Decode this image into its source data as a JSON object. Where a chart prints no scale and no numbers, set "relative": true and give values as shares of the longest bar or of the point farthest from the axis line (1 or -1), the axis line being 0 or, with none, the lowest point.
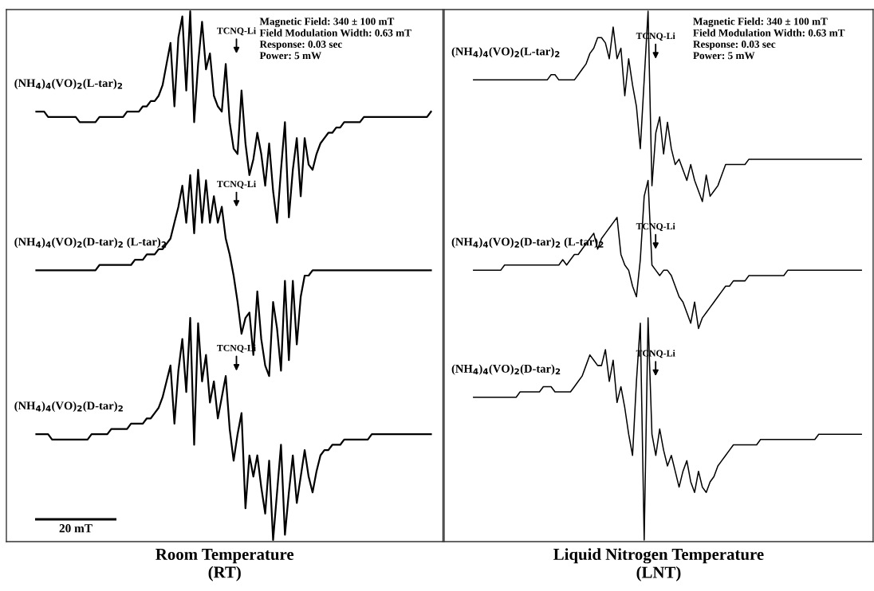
{
  "chart_data": [
    {
      "type": "line",
      "relative": true,
      "tick_labels": false,
      "line_style": "solid",
      "xlabel": "Room Temperature\n(RT)",
      "categories": [
        null,
        null,
        null,
        null,
        null,
        null,
        null,
        null,
        null,
        null,
        null,
        null,
        null,
        null,
        null,
        null,
        null,
        null,
        null,
        null,
        null,
        null,
        null,
        null,
        null,
        null,
        null,
        null,
        null,
        null,
        null,
        null,
        null,
        null,
        null,
        null,
        null,
        null,
        null,
        null,
        null,
        null,
        null,
        null,
        null,
        null,
        null,
        null,
        null,
        null,
        null,
        null,
        null,
        null,
        null,
        null,
        null,
        null,
        null,
        null,
        null,
        null,
        null,
        null,
        null,
        null,
        null,
        null,
        null,
        null,
        null,
        null,
        null,
        null,
        null,
        null,
        null,
        null,
        null,
        null,
        null,
        null,
        null,
        null,
        null,
        null,
        null,
        null,
        null,
        null,
        null,
        null,
        null,
        null,
        null,
        null,
        null,
        null,
        null,
        null,
        null
      ],
      "series": [
        {
          "name": "(NH$_{4}$)$_{4}$(VO)$_{2}$(L-tar)$_{2}$",
          "color": "#000000",
          "values": [
            0.81,
            0.81,
            0.81,
            0.8,
            0.8,
            0.8,
            0.8,
            0.8,
            0.8,
            0.8,
            0.8,
            0.79,
            0.79,
            0.79,
            0.79,
            0.79,
            0.8,
            0.8,
            0.8,
            0.8,
            0.8,
            0.8,
            0.8,
            0.81,
            0.81,
            0.81,
            0.81,
            0.82,
            0.82,
            0.83,
            0.83,
            0.84,
            0.86,
            0.9,
            0.94,
            0.82,
            0.95,
            0.99,
            0.85,
            1.0,
            0.79,
            0.9,
            0.98,
            0.89,
            0.92,
            0.84,
            0.82,
            0.81,
            0.9,
            0.79,
            0.74,
            0.73,
            0.85,
            0.75,
            0.69,
            0.72,
            0.77,
            0.73,
            0.67,
            0.75,
            0.66,
            0.6,
            0.7,
            0.79,
            0.61,
            0.7,
            0.76,
            0.65,
            0.76,
            0.71,
            0.7,
            0.73,
            0.75,
            0.76,
            0.77,
            0.77,
            0.78,
            0.78,
            0.79,
            0.79,
            0.79,
            0.79,
            0.79,
            0.8,
            0.8,
            0.8,
            0.8,
            0.8,
            0.8,
            0.8,
            0.8,
            0.8,
            0.8,
            0.8,
            0.8,
            0.8,
            0.8,
            0.8,
            0.8,
            0.8,
            0.81
          ]
        },
        {
          "name": "(NH$_{4}$)$_{4}$(VO)$_{2}$(D-tar)$_{2}$ (L-tar)$_{2}$",
          "color": "#000000",
          "values": [
            0.51,
            0.51,
            0.51,
            0.51,
            0.51,
            0.51,
            0.51,
            0.51,
            0.51,
            0.51,
            0.51,
            0.51,
            0.51,
            0.51,
            0.51,
            0.51,
            0.52,
            0.52,
            0.52,
            0.52,
            0.52,
            0.52,
            0.52,
            0.52,
            0.52,
            0.53,
            0.53,
            0.53,
            0.54,
            0.54,
            0.54,
            0.55,
            0.55,
            0.56,
            0.57,
            0.6,
            0.63,
            0.67,
            0.6,
            0.69,
            0.58,
            0.7,
            0.6,
            0.68,
            0.6,
            0.65,
            0.6,
            0.63,
            0.57,
            0.54,
            0.5,
            0.45,
            0.39,
            0.42,
            0.43,
            0.35,
            0.47,
            0.38,
            0.33,
            0.31,
            0.45,
            0.4,
            0.32,
            0.49,
            0.34,
            0.49,
            0.37,
            0.46,
            0.5,
            0.5,
            0.51,
            0.51,
            0.51,
            0.51,
            0.51,
            0.51,
            0.51,
            0.51,
            0.51,
            0.51,
            0.51,
            0.51,
            0.51,
            0.51,
            0.51,
            0.51,
            0.51,
            0.51,
            0.51,
            0.51,
            0.51,
            0.51,
            0.51,
            0.51,
            0.51,
            0.51,
            0.51,
            0.51,
            0.51,
            0.51,
            0.51
          ]
        },
        {
          "name": "(NH$_{4}$)$_{4}$(VO)$_{2}$(D-tar)$_{2}$",
          "color": "#000000",
          "values": [
            0.2,
            0.2,
            0.2,
            0.2,
            0.19,
            0.19,
            0.19,
            0.19,
            0.19,
            0.19,
            0.19,
            0.19,
            0.19,
            0.19,
            0.2,
            0.2,
            0.2,
            0.2,
            0.2,
            0.21,
            0.21,
            0.21,
            0.21,
            0.21,
            0.22,
            0.22,
            0.22,
            0.22,
            0.23,
            0.23,
            0.24,
            0.25,
            0.27,
            0.3,
            0.33,
            0.22,
            0.32,
            0.38,
            0.28,
            0.42,
            0.18,
            0.41,
            0.3,
            0.35,
            0.26,
            0.3,
            0.23,
            0.27,
            0.31,
            0.21,
            0.15,
            0.2,
            0.24,
            0.06,
            0.16,
            0.12,
            0.16,
            0.1,
            0.05,
            0.15,
            0,
            0.09,
            0.18,
            0.01,
            0.09,
            0.16,
            0.07,
            0.12,
            0.17,
            0.12,
            0.09,
            0.13,
            0.16,
            0.17,
            0.17,
            0.18,
            0.18,
            0.18,
            0.19,
            0.19,
            0.19,
            0.19,
            0.19,
            0.19,
            0.19,
            0.2,
            0.2,
            0.2,
            0.2,
            0.2,
            0.2,
            0.2,
            0.2,
            0.2,
            0.2,
            0.2,
            0.2,
            0.2,
            0.2,
            0.2,
            0.2
          ]
        },
        {
          "color": "#000000",
          "values": [
            0.039,
            0.039,
            0.039,
            0.039,
            0.039,
            0.039,
            0.039,
            0.039,
            0.039,
            0.039,
            0.039,
            0.039,
            0.039,
            0.039,
            0.039,
            0.039,
            0.039,
            0.039,
            0.039,
            0.039,
            0.039,
            null,
            null,
            null,
            null,
            null,
            null,
            null,
            null,
            null,
            null,
            null,
            null,
            null,
            null,
            null,
            null,
            null,
            null,
            null,
            null,
            null,
            null,
            null,
            null,
            null,
            null,
            null,
            null,
            null,
            null,
            null,
            null,
            null,
            null,
            null,
            null,
            null,
            null,
            null,
            null,
            null,
            null,
            null,
            null,
            null,
            null,
            null,
            null,
            null,
            null,
            null,
            null,
            null,
            null,
            null,
            null,
            null,
            null,
            null,
            null,
            null,
            null,
            null,
            null,
            null,
            null,
            null,
            null,
            null,
            null,
            null,
            null,
            null,
            null,
            null,
            null,
            null,
            null,
            null,
            null
          ]
        }
      ],
      "annotations": [
        "TCNQ-Li",
        "TCNQ-Li",
        "TCNQ-Li",
        "Magnetic Field: 340 ± 100 mT\nField Modulation Width: 0.63 mT\nResponse: 0.03 sec\nPower: 5 mW",
        "20 mT"
      ]
    },
    {
      "type": "line",
      "relative": true,
      "tick_labels": false,
      "line_style": "solid",
      "xlabel": "Liquid Nitrogen Temperature\n(LNT)",
      "categories": [
        null,
        null,
        null,
        null,
        null,
        null,
        null,
        null,
        null,
        null,
        null,
        null,
        null,
        null,
        null,
        null,
        null,
        null,
        null,
        null,
        null,
        null,
        null,
        null,
        null,
        null,
        null,
        null,
        null,
        null,
        null,
        null,
        null,
        null,
        null,
        null,
        null,
        null,
        null,
        null,
        null,
        null,
        null,
        null,
        null,
        null,
        null,
        null,
        null,
        null,
        null,
        null,
        null,
        null,
        null,
        null,
        null,
        null,
        null,
        null,
        null,
        null,
        null,
        null,
        null,
        null,
        null,
        null,
        null,
        null,
        null,
        null,
        null,
        null,
        null,
        null,
        null,
        null,
        null,
        null,
        null,
        null,
        null,
        null,
        null,
        null,
        null,
        null,
        null,
        null,
        null,
        null,
        null,
        null,
        null,
        null,
        null,
        null,
        null,
        null,
        null
      ],
      "series": [
        {
          "name": "(NH$_{4}$)$_{4}$(VO)$_{2}$(L-tar)$_{2}$",
          "color": "#000000",
          "values": [
            0.87,
            0.87,
            0.87,
            0.87,
            0.87,
            0.87,
            0.87,
            0.87,
            0.87,
            0.87,
            0.87,
            0.87,
            0.87,
            0.87,
            0.87,
            0.87,
            0.87,
            0.87,
            0.87,
            0.87,
            0.88,
            0.88,
            0.87,
            0.87,
            0.87,
            0.87,
            0.87,
            0.88,
            0.89,
            0.9,
            0.92,
            0.93,
            0.95,
            0.95,
            0.94,
            0.91,
            0.97,
            0.91,
            0.93,
            0.84,
            0.91,
            0.86,
            0.82,
            0.74,
            0.87,
            1.0,
            0.67,
            0.77,
            0.8,
            0.73,
            0.79,
            0.74,
            0.71,
            0.72,
            0.7,
            0.68,
            0.71,
            0.68,
            0.66,
            0.64,
            0.69,
            0.65,
            0.66,
            0.67,
            0.69,
            0.71,
            0.71,
            0.71,
            0.71,
            0.71,
            0.71,
            0.72,
            0.72,
            0.72,
            0.72,
            0.72,
            0.72,
            0.72,
            0.72,
            0.72,
            0.72,
            0.72,
            0.72,
            0.72,
            0.72,
            0.72,
            0.72,
            0.72,
            0.72,
            0.72,
            0.72,
            0.72,
            0.72,
            0.72,
            0.72,
            0.72,
            0.72,
            0.72,
            0.72,
            0.72,
            0.72
          ]
        },
        {
          "name": "(NH$_{4}$)$_{4}$(VO)$_{2}$(D-tar)$_{2}$ (L-tar)$_{2}$",
          "color": "#000000",
          "values": [
            0.51,
            0.51,
            0.51,
            0.51,
            0.51,
            0.51,
            0.51,
            0.51,
            0.52,
            0.52,
            0.52,
            0.52,
            0.52,
            0.52,
            0.52,
            0.52,
            0.52,
            0.52,
            0.52,
            0.52,
            0.52,
            0.52,
            0.52,
            0.53,
            0.52,
            0.53,
            0.54,
            0.54,
            0.55,
            0.56,
            0.57,
            0.58,
            0.55,
            0.57,
            0.58,
            0.59,
            0.6,
            0.61,
            0.54,
            0.52,
            0.51,
            0.48,
            0.46,
            0.53,
            0.65,
            0.68,
            0.52,
            0.51,
            0.5,
            0.51,
            0.51,
            0.5,
            0.48,
            0.46,
            0.45,
            0.43,
            0.41,
            0.45,
            0.4,
            0.42,
            0.43,
            0.44,
            0.45,
            0.46,
            0.47,
            0.48,
            0.48,
            0.49,
            0.49,
            0.49,
            0.49,
            0.5,
            0.5,
            0.5,
            0.5,
            0.5,
            0.5,
            0.5,
            0.5,
            0.5,
            0.5,
            0.51,
            0.51,
            0.51,
            0.51,
            0.51,
            0.51,
            0.51,
            0.51,
            0.51,
            0.51,
            0.51,
            0.51,
            0.51,
            0.51,
            0.51,
            0.51,
            0.51,
            0.51,
            0.51,
            0.51
          ]
        },
        {
          "name": "(NH$_{4}$)$_{4}$(VO)$_{2}$(D-tar)$_{2}$",
          "color": "#000000",
          "values": [
            0.27,
            0.27,
            0.27,
            0.27,
            0.27,
            0.27,
            0.27,
            0.27,
            0.27,
            0.27,
            0.27,
            0.27,
            0.28,
            0.28,
            0.28,
            0.28,
            0.28,
            0.28,
            0.29,
            0.29,
            0.29,
            0.28,
            0.28,
            0.28,
            0.28,
            0.28,
            0.29,
            0.3,
            0.31,
            0.33,
            0.35,
            0.34,
            0.33,
            0.33,
            0.36,
            0.3,
            0.34,
            0.26,
            0.29,
            0.25,
            0.2,
            0.16,
            0.3,
            0.41,
            0,
            0.42,
            0.2,
            0.16,
            0.21,
            0.17,
            0.14,
            0.16,
            0.13,
            0.1,
            0.13,
            0.15,
            0.11,
            0.09,
            0.13,
            0.1,
            0.09,
            0.11,
            0.12,
            0.14,
            0.15,
            0.16,
            0.17,
            0.18,
            0.18,
            0.18,
            0.18,
            0.18,
            0.18,
            0.18,
            0.19,
            0.19,
            0.19,
            0.19,
            0.19,
            0.19,
            0.19,
            0.19,
            0.19,
            0.19,
            0.19,
            0.19,
            0.19,
            0.19,
            0.19,
            0.2,
            0.2,
            0.2,
            0.2,
            0.2,
            0.2,
            0.2,
            0.2,
            0.2,
            0.2,
            0.2,
            0.2
          ]
        }
      ],
      "annotations": [
        "TCNQ-Li",
        "TCNQ-Li",
        "TCNQ-Li",
        "Magnetic Field: 340 ± 100 mT\nField Modulation Width: 0.63 mT\nResponse: 0.03 sec\nPower: 5 mW"
      ]
    }
  ]
}
